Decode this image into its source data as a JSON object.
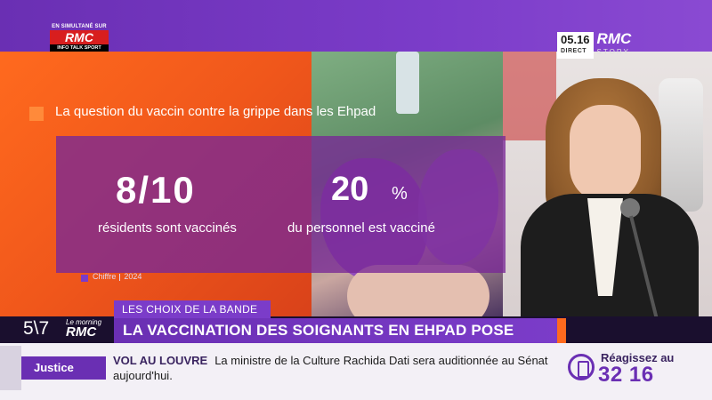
{
  "broadcast": {
    "simulcast_label": "EN SIMULTANÉ SUR",
    "partner_logo": "RMC",
    "partner_sub": "INFO TALK SPORT",
    "clock": "05.16",
    "direct_label": "DIRECT",
    "channel_logo": "RMC",
    "channel_sub": "STORY"
  },
  "infographic": {
    "question": "La question du vaccin contre la grippe dans les Ehpad",
    "stat1_value": "8/10",
    "stat1_label": "résidents sont vaccinés",
    "stat2_value": "20",
    "stat2_unit": "%",
    "stat2_label": "du personnel est vacciné",
    "source_label": "Chiffre",
    "source_year": "2024"
  },
  "lower_third": {
    "segment": "LES CHOIX DE LA BANDE",
    "show_logo_main": "5\\7",
    "show_logo_top": "Le morning",
    "show_logo_bottom": "RMC",
    "headline": "LA VACCINATION DES SOIGNANTS EN EHPAD POSE QUESTION"
  },
  "ticker": {
    "category": "Justice",
    "topic": "VOL AU LOUVRE",
    "text": "La ministre de la Culture Rachida Dati sera auditionnée au Sénat aujourd'hui."
  },
  "react": {
    "label": "Réagissez au",
    "number": "32 16",
    "icon": "phone-icon"
  },
  "colors": {
    "brand_purple": "#6a2fb3",
    "accent_orange": "#ff6a1e",
    "rmc_red": "#d81e1e"
  }
}
